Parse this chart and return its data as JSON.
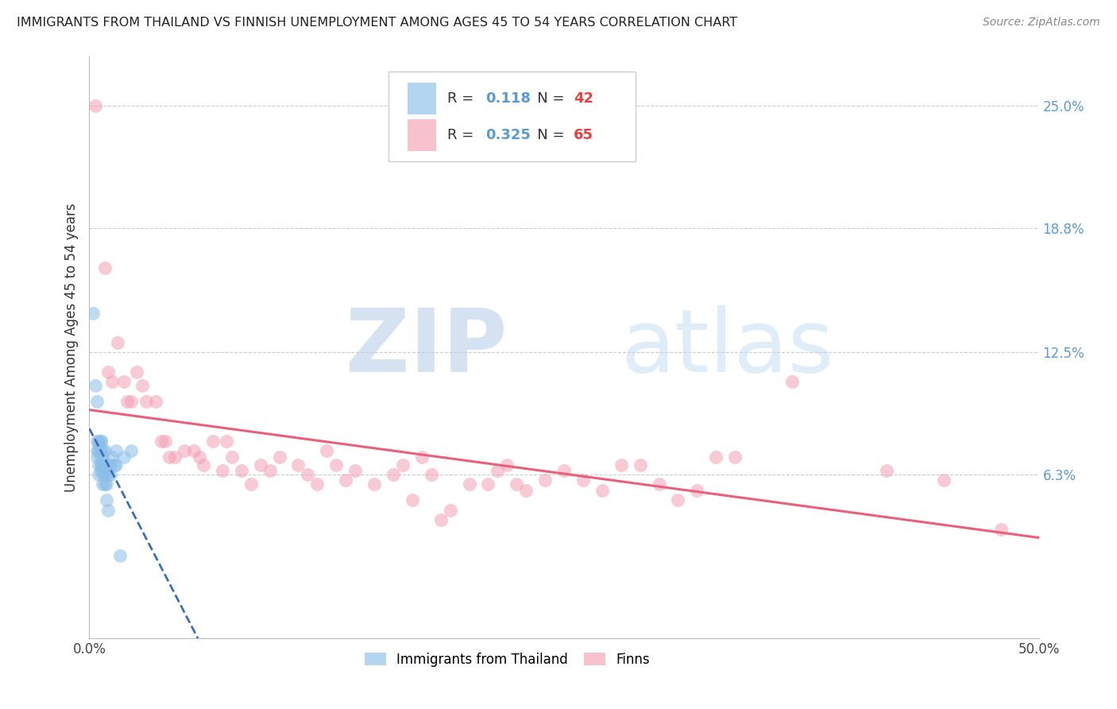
{
  "title": "IMMIGRANTS FROM THAILAND VS FINNISH UNEMPLOYMENT AMONG AGES 45 TO 54 YEARS CORRELATION CHART",
  "source": "Source: ZipAtlas.com",
  "ylabel": "Unemployment Among Ages 45 to 54 years",
  "ytick_labels": [
    "25.0%",
    "18.8%",
    "12.5%",
    "6.3%"
  ],
  "ytick_values": [
    0.25,
    0.188,
    0.125,
    0.063
  ],
  "xlim": [
    0.0,
    0.5
  ],
  "ylim": [
    -0.02,
    0.275
  ],
  "watermark_zip": "ZIP",
  "watermark_atlas": "atlas",
  "legend_blue_r": "0.118",
  "legend_blue_n": "42",
  "legend_pink_r": "0.325",
  "legend_pink_n": "65",
  "blue_color": "#8bbfe8",
  "pink_color": "#f4a0b5",
  "blue_line_color": "#3a6fbf",
  "pink_line_color": "#e8607a",
  "right_tick_color": "#5b9bd5",
  "legend_r_color": "#5b9bd5",
  "legend_n_color": "#e84040",
  "blue_scatter": [
    [
      0.002,
      0.145
    ],
    [
      0.003,
      0.108
    ],
    [
      0.004,
      0.08
    ],
    [
      0.004,
      0.1
    ],
    [
      0.004,
      0.075
    ],
    [
      0.004,
      0.072
    ],
    [
      0.005,
      0.078
    ],
    [
      0.005,
      0.068
    ],
    [
      0.005,
      0.063
    ],
    [
      0.005,
      0.075
    ],
    [
      0.005,
      0.08
    ],
    [
      0.006,
      0.08
    ],
    [
      0.006,
      0.075
    ],
    [
      0.006,
      0.068
    ],
    [
      0.006,
      0.08
    ],
    [
      0.006,
      0.072
    ],
    [
      0.006,
      0.065
    ],
    [
      0.007,
      0.068
    ],
    [
      0.007,
      0.075
    ],
    [
      0.007,
      0.072
    ],
    [
      0.007,
      0.068
    ],
    [
      0.007,
      0.063
    ],
    [
      0.007,
      0.058
    ],
    [
      0.008,
      0.068
    ],
    [
      0.008,
      0.063
    ],
    [
      0.008,
      0.058
    ],
    [
      0.008,
      0.075
    ],
    [
      0.009,
      0.065
    ],
    [
      0.009,
      0.058
    ],
    [
      0.009,
      0.05
    ],
    [
      0.01,
      0.063
    ],
    [
      0.01,
      0.068
    ],
    [
      0.01,
      0.045
    ],
    [
      0.011,
      0.068
    ],
    [
      0.011,
      0.063
    ],
    [
      0.012,
      0.072
    ],
    [
      0.013,
      0.068
    ],
    [
      0.014,
      0.075
    ],
    [
      0.014,
      0.068
    ],
    [
      0.016,
      0.022
    ],
    [
      0.018,
      0.072
    ],
    [
      0.022,
      0.075
    ]
  ],
  "pink_scatter": [
    [
      0.003,
      0.25
    ],
    [
      0.008,
      0.168
    ],
    [
      0.01,
      0.115
    ],
    [
      0.012,
      0.11
    ],
    [
      0.015,
      0.13
    ],
    [
      0.018,
      0.11
    ],
    [
      0.02,
      0.1
    ],
    [
      0.022,
      0.1
    ],
    [
      0.025,
      0.115
    ],
    [
      0.028,
      0.108
    ],
    [
      0.03,
      0.1
    ],
    [
      0.035,
      0.1
    ],
    [
      0.038,
      0.08
    ],
    [
      0.04,
      0.08
    ],
    [
      0.042,
      0.072
    ],
    [
      0.045,
      0.072
    ],
    [
      0.05,
      0.075
    ],
    [
      0.055,
      0.075
    ],
    [
      0.058,
      0.072
    ],
    [
      0.06,
      0.068
    ],
    [
      0.065,
      0.08
    ],
    [
      0.07,
      0.065
    ],
    [
      0.072,
      0.08
    ],
    [
      0.075,
      0.072
    ],
    [
      0.08,
      0.065
    ],
    [
      0.085,
      0.058
    ],
    [
      0.09,
      0.068
    ],
    [
      0.095,
      0.065
    ],
    [
      0.1,
      0.072
    ],
    [
      0.11,
      0.068
    ],
    [
      0.115,
      0.063
    ],
    [
      0.12,
      0.058
    ],
    [
      0.125,
      0.075
    ],
    [
      0.13,
      0.068
    ],
    [
      0.135,
      0.06
    ],
    [
      0.14,
      0.065
    ],
    [
      0.15,
      0.058
    ],
    [
      0.16,
      0.063
    ],
    [
      0.165,
      0.068
    ],
    [
      0.17,
      0.05
    ],
    [
      0.175,
      0.072
    ],
    [
      0.18,
      0.063
    ],
    [
      0.185,
      0.04
    ],
    [
      0.19,
      0.045
    ],
    [
      0.2,
      0.058
    ],
    [
      0.21,
      0.058
    ],
    [
      0.215,
      0.065
    ],
    [
      0.22,
      0.068
    ],
    [
      0.225,
      0.058
    ],
    [
      0.23,
      0.055
    ],
    [
      0.24,
      0.06
    ],
    [
      0.25,
      0.065
    ],
    [
      0.26,
      0.06
    ],
    [
      0.27,
      0.055
    ],
    [
      0.28,
      0.068
    ],
    [
      0.29,
      0.068
    ],
    [
      0.3,
      0.058
    ],
    [
      0.31,
      0.05
    ],
    [
      0.32,
      0.055
    ],
    [
      0.33,
      0.072
    ],
    [
      0.34,
      0.072
    ],
    [
      0.37,
      0.11
    ],
    [
      0.42,
      0.065
    ],
    [
      0.45,
      0.06
    ],
    [
      0.48,
      0.035
    ]
  ]
}
